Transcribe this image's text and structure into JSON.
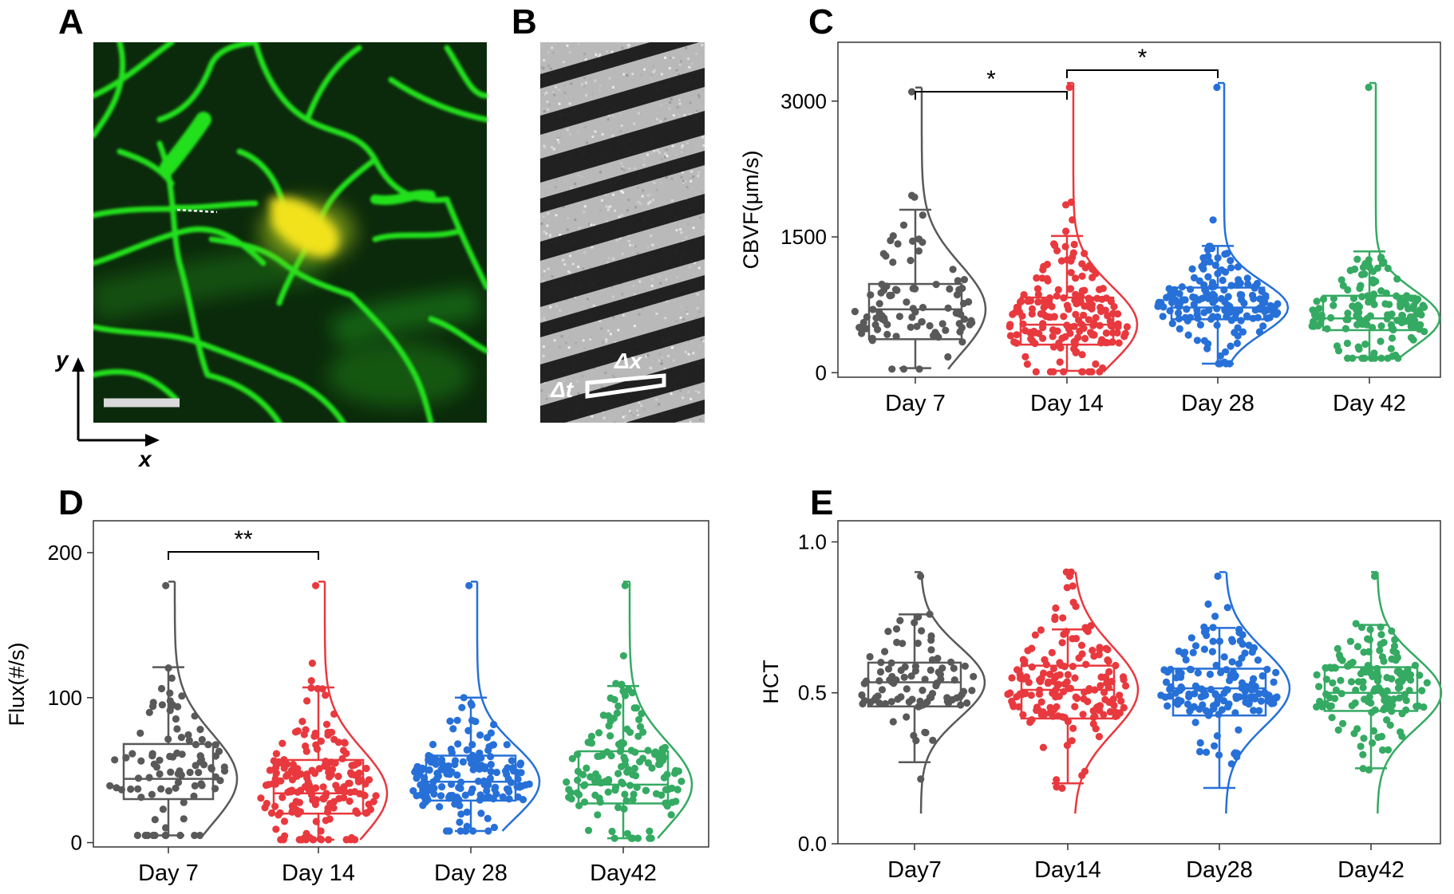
{
  "panels": {
    "A": {
      "letter": "A",
      "axis_y": "y",
      "axis_x": "x"
    },
    "B": {
      "letter": "B",
      "delta_t": "Δt",
      "delta_x": "Δx"
    },
    "C": {
      "letter": "C"
    },
    "D": {
      "letter": "D"
    },
    "E": {
      "letter": "E"
    }
  },
  "colors": {
    "day7": "#595959",
    "day14": "#e8393e",
    "day28": "#2670d8",
    "day42": "#35aa62",
    "vessel_green": "#22e01e",
    "background_dark_green": "#0b2a0b",
    "cell_yellow": "#f2e21a"
  },
  "chart_data": [
    {
      "id": "C",
      "type": "box",
      "ylabel": "CBVF(μm/s)",
      "ylim": [
        -50,
        3650
      ],
      "yticks": [
        0,
        1500,
        3000
      ],
      "categories": [
        "Day 7",
        "Day 14",
        "Day 28",
        "Day 42"
      ],
      "series": [
        {
          "box": {
            "whisker_low": 50,
            "q1": 370,
            "median": 700,
            "q3": 980,
            "whisker_high": 1800
          },
          "point_range": [
            40,
            3150
          ],
          "n": 95
        },
        {
          "box": {
            "whisker_low": 20,
            "q1": 310,
            "median": 530,
            "q3": 830,
            "whisker_high": 1510
          },
          "point_range": [
            10,
            3200
          ],
          "n": 190
        },
        {
          "box": {
            "whisker_low": 100,
            "q1": 590,
            "median": 720,
            "q3": 940,
            "whisker_high": 1400
          },
          "point_range": [
            100,
            3200
          ],
          "n": 170
        },
        {
          "box": {
            "whisker_low": 170,
            "q1": 470,
            "median": 600,
            "q3": 850,
            "whisker_high": 1340
          },
          "point_range": [
            160,
            3200
          ],
          "n": 150
        }
      ],
      "significance": [
        {
          "from": 0,
          "to": 1,
          "label": "*"
        },
        {
          "from": 1,
          "to": 2,
          "label": "*"
        }
      ]
    },
    {
      "id": "D",
      "type": "box",
      "ylabel": "Flux(#/s)",
      "ylim": [
        -3,
        222
      ],
      "yticks": [
        0,
        100,
        200
      ],
      "categories": [
        "Day 7",
        "Day 14",
        "Day 28",
        "Day42"
      ],
      "series": [
        {
          "box": {
            "whisker_low": 5,
            "q1": 30,
            "median": 44,
            "q3": 68,
            "whisker_high": 121
          },
          "point_range": [
            5,
            180
          ],
          "n": 95
        },
        {
          "box": {
            "whisker_low": 2,
            "q1": 20,
            "median": 34,
            "q3": 57,
            "whisker_high": 107
          },
          "point_range": [
            2,
            180
          ],
          "n": 190
        },
        {
          "box": {
            "whisker_low": 8,
            "q1": 29,
            "median": 42,
            "q3": 60,
            "whisker_high": 100
          },
          "point_range": [
            8,
            180
          ],
          "n": 170
        },
        {
          "box": {
            "whisker_low": 3,
            "q1": 27,
            "median": 40,
            "q3": 63,
            "whisker_high": 108
          },
          "point_range": [
            3,
            180
          ],
          "n": 150
        }
      ],
      "significance": [
        {
          "from": 0,
          "to": 1,
          "label": "**"
        }
      ]
    },
    {
      "id": "E",
      "type": "box",
      "ylabel": "HCT",
      "ylim": [
        0,
        1.07
      ],
      "yticks": [
        0.0,
        0.5,
        1.0
      ],
      "ytick_labels": [
        "0.0",
        "0.5",
        "1.0"
      ],
      "categories": [
        "Day7",
        "Day14",
        "Day28",
        "Day42"
      ],
      "series": [
        {
          "box": {
            "whisker_low": 0.27,
            "q1": 0.455,
            "median": 0.535,
            "q3": 0.6,
            "whisker_high": 0.76
          },
          "point_range": [
            0.1,
            0.9
          ],
          "n": 95
        },
        {
          "box": {
            "whisker_low": 0.2,
            "q1": 0.415,
            "median": 0.51,
            "q3": 0.59,
            "whisker_high": 0.71
          },
          "point_range": [
            0.1,
            0.9
          ],
          "n": 170
        },
        {
          "box": {
            "whisker_low": 0.185,
            "q1": 0.425,
            "median": 0.515,
            "q3": 0.58,
            "whisker_high": 0.715
          },
          "point_range": [
            0.1,
            0.9
          ],
          "n": 160
        },
        {
          "box": {
            "whisker_low": 0.25,
            "q1": 0.44,
            "median": 0.5,
            "q3": 0.585,
            "whisker_high": 0.725
          },
          "point_range": [
            0.1,
            0.9
          ],
          "n": 150
        }
      ],
      "significance": []
    }
  ]
}
